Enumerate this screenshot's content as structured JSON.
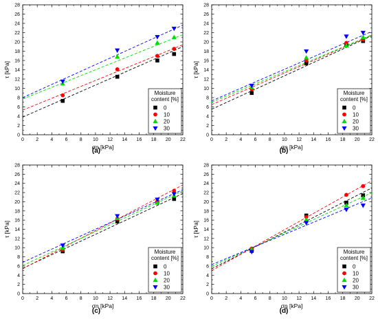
{
  "chart_data": [
    {
      "type": "scatter",
      "panel_label": "(a)",
      "xlabel": "σn [kPa]",
      "ylabel": "τ [kPa]",
      "xlim": [
        0,
        22
      ],
      "ylim": [
        0,
        28
      ],
      "xticks": [
        0,
        2,
        4,
        6,
        8,
        10,
        12,
        14,
        16,
        18,
        20,
        22
      ],
      "yticks": [
        0,
        2,
        4,
        6,
        8,
        10,
        12,
        14,
        16,
        18,
        20,
        22,
        24,
        26,
        28
      ],
      "grid": false,
      "legend_position": "lower-right",
      "legend_title": [
        "Moisture",
        "content [%]"
      ],
      "series": [
        {
          "name": "0",
          "color": "#000000",
          "marker": "square",
          "x": [
            5.5,
            13,
            18.5,
            20.8
          ],
          "y": [
            7.3,
            12.5,
            16,
            17.4
          ],
          "fit": {
            "intercept": 3.8,
            "slope": 0.69
          }
        },
        {
          "name": "10",
          "color": "#ff0000",
          "marker": "circle",
          "x": [
            5.5,
            13,
            18.5,
            20.8
          ],
          "y": [
            8.5,
            14.1,
            17,
            18.5
          ],
          "fit": {
            "intercept": 5.3,
            "slope": 0.64
          }
        },
        {
          "name": "20",
          "color": "#00dd00",
          "marker": "triangle-up",
          "x": [
            5.5,
            13,
            18.5,
            20.8
          ],
          "y": [
            11,
            16.8,
            19.8,
            21
          ],
          "fit": {
            "intercept": 7.7,
            "slope": 0.63
          }
        },
        {
          "name": "30",
          "color": "#0000ff",
          "marker": "triangle-down",
          "x": [
            5.5,
            13,
            18.5,
            20.8
          ],
          "y": [
            11.5,
            18.2,
            21.1,
            22.9
          ],
          "fit": {
            "intercept": 8.0,
            "slope": 0.71
          }
        }
      ]
    },
    {
      "type": "scatter",
      "panel_label": "(b)",
      "xlabel": "σn [kPa]",
      "ylabel": "τ [kPa]",
      "xlim": [
        0,
        22
      ],
      "ylim": [
        0,
        28
      ],
      "xticks": [
        0,
        2,
        4,
        6,
        8,
        10,
        12,
        14,
        16,
        18,
        20,
        22
      ],
      "yticks": [
        0,
        2,
        4,
        6,
        8,
        10,
        12,
        14,
        16,
        18,
        20,
        22,
        24,
        26,
        28
      ],
      "grid": false,
      "legend_position": "lower-right",
      "legend_title": [
        "Moisture",
        "content [%]"
      ],
      "series": [
        {
          "name": "0",
          "color": "#000000",
          "marker": "square",
          "x": [
            5.5,
            13,
            18.5,
            20.8
          ],
          "y": [
            9,
            15.4,
            19.3,
            20.2
          ],
          "fit": {
            "intercept": 5.5,
            "slope": 0.72
          }
        },
        {
          "name": "10",
          "color": "#ff0000",
          "marker": "circle",
          "x": [
            5.5,
            13,
            18.5,
            20.8
          ],
          "y": [
            9.8,
            16,
            19.8,
            20.5
          ],
          "fit": {
            "intercept": 6.5,
            "slope": 0.68
          }
        },
        {
          "name": "20",
          "color": "#00dd00",
          "marker": "triangle-up",
          "x": [
            5.5,
            13,
            18.5,
            20.8
          ],
          "y": [
            10.2,
            16.6,
            19.2,
            21
          ],
          "fit": {
            "intercept": 7.0,
            "slope": 0.66
          }
        },
        {
          "name": "30",
          "color": "#0000ff",
          "marker": "triangle-down",
          "x": [
            5.5,
            13,
            18.5,
            20.8
          ],
          "y": [
            10.6,
            18,
            21.2,
            22
          ],
          "fit": {
            "intercept": 7.3,
            "slope": 0.68
          }
        }
      ]
    },
    {
      "type": "scatter",
      "panel_label": "(c)",
      "xlabel": "σn [kPa]",
      "ylabel": "τ [kPa]",
      "xlim": [
        0,
        22
      ],
      "ylim": [
        0,
        28
      ],
      "xticks": [
        0,
        2,
        4,
        6,
        8,
        10,
        12,
        14,
        16,
        18,
        20,
        22
      ],
      "yticks": [
        0,
        2,
        4,
        6,
        8,
        10,
        12,
        14,
        16,
        18,
        20,
        22,
        24,
        26,
        28
      ],
      "grid": false,
      "legend_position": "lower-right",
      "legend_title": [
        "Moisture",
        "content [%]"
      ],
      "series": [
        {
          "name": "0",
          "color": "#000000",
          "marker": "square",
          "x": [
            5.5,
            13,
            18.5,
            20.8
          ],
          "y": [
            9.2,
            15.7,
            19.8,
            20.6
          ],
          "fit": {
            "intercept": 5.5,
            "slope": 0.74
          }
        },
        {
          "name": "10",
          "color": "#ff0000",
          "marker": "circle",
          "x": [
            5.5,
            13,
            18.5,
            20.8
          ],
          "y": [
            9.5,
            16.3,
            20,
            22.4
          ],
          "fit": {
            "intercept": 5.4,
            "slope": 0.83
          }
        },
        {
          "name": "20",
          "color": "#00dd00",
          "marker": "triangle-up",
          "x": [
            5.5,
            13,
            18.5,
            20.8
          ],
          "y": [
            9.9,
            16.4,
            19.8,
            21.3
          ],
          "fit": {
            "intercept": 6.1,
            "slope": 0.74
          }
        },
        {
          "name": "30",
          "color": "#0000ff",
          "marker": "triangle-down",
          "x": [
            5.5,
            13,
            18.5,
            20.8
          ],
          "y": [
            10.5,
            16.9,
            20.5,
            21.7
          ],
          "fit": {
            "intercept": 6.8,
            "slope": 0.72
          }
        }
      ]
    },
    {
      "type": "scatter",
      "panel_label": "(d)",
      "xlabel": "σn [kPa]",
      "ylabel": "τ [kPa]",
      "xlim": [
        0,
        22
      ],
      "ylim": [
        0,
        28
      ],
      "xticks": [
        0,
        2,
        4,
        6,
        8,
        10,
        12,
        14,
        16,
        18,
        20,
        22
      ],
      "yticks": [
        0,
        2,
        4,
        6,
        8,
        10,
        12,
        14,
        16,
        18,
        20,
        22,
        24,
        26,
        28
      ],
      "grid": false,
      "legend_position": "lower-right",
      "legend_title": [
        "Moisture",
        "content [%]"
      ],
      "series": [
        {
          "name": "0",
          "color": "#000000",
          "marker": "square",
          "x": [
            5.5,
            13,
            18.5,
            20.8
          ],
          "y": [
            9.3,
            17,
            19.8,
            21.4
          ],
          "fit": {
            "intercept": 5.4,
            "slope": 0.8
          }
        },
        {
          "name": "10",
          "color": "#ff0000",
          "marker": "circle",
          "x": [
            5.5,
            13,
            18.5,
            20.8
          ],
          "y": [
            9.8,
            16.7,
            21.5,
            23.4
          ],
          "fit": {
            "intercept": 5.0,
            "slope": 0.89
          }
        },
        {
          "name": "20",
          "color": "#00dd00",
          "marker": "triangle-up",
          "x": [
            5.5,
            13,
            18.5,
            20.8
          ],
          "y": [
            9.6,
            16.1,
            19.2,
            20.8
          ],
          "fit": {
            "intercept": 5.9,
            "slope": 0.73
          }
        },
        {
          "name": "30",
          "color": "#0000ff",
          "marker": "triangle-down",
          "x": [
            5.5,
            13,
            18.5,
            20.8
          ],
          "y": [
            9.1,
            15.4,
            18.3,
            19.2
          ],
          "fit": {
            "intercept": 6.3,
            "slope": 0.66
          }
        }
      ]
    }
  ]
}
